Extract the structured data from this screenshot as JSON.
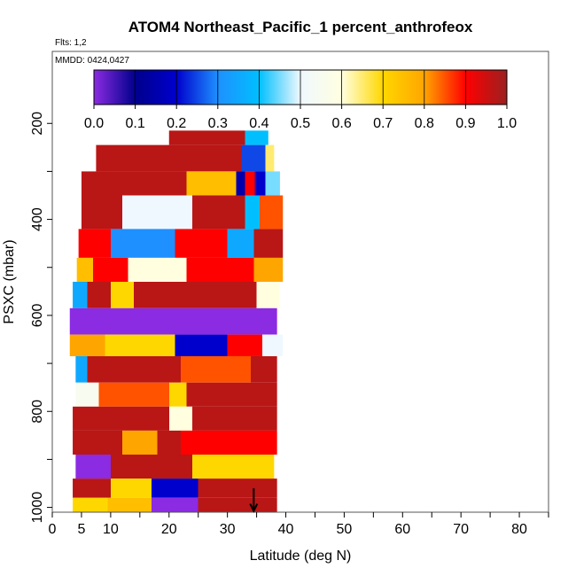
{
  "chart_data": {
    "type": "heatmap",
    "title": "ATOM4 Northeast_Pacific_1 percent_anthrofeox",
    "subtitle_flights": "Flts: 1,2",
    "subtitle_dates": "MMDD: 0424,0427",
    "xlabel": "Latitude (deg N)",
    "ylabel": "PSXC (mbar)",
    "xlim": [
      0,
      85
    ],
    "ylim": [
      1010,
      50
    ],
    "x_ticks": [
      0,
      5,
      10,
      20,
      30,
      40,
      50,
      60,
      70,
      80
    ],
    "x_minor_ticks": [
      15,
      25,
      35,
      45,
      55,
      65,
      75,
      85
    ],
    "y_ticks": [
      200,
      400,
      600,
      800,
      1000
    ],
    "y_minor_ticks": [
      300,
      500,
      700,
      900
    ],
    "colorbar": {
      "range": [
        0,
        1
      ],
      "tick_labels": [
        "0.0",
        "0.1",
        "0.2",
        "0.3",
        "0.4",
        "0.5",
        "0.6",
        "0.7",
        "0.8",
        "0.9",
        "1.0"
      ],
      "stops": [
        "#8b2be2",
        "#00008b",
        "#0000cd",
        "#1e90ff",
        "#00bfff",
        "#f0f8ff",
        "#ffffe0",
        "#ffd700",
        "#ffa500",
        "#ff0000",
        "#9b2020"
      ]
    },
    "grid": false,
    "marker": {
      "label": "arrow",
      "x": 34.5,
      "y": 1000
    },
    "bands": [
      {
        "p": [
          215,
          245
        ],
        "stops": [
          [
            20,
            20,
            0.97
          ],
          [
            27.2,
            27.2,
            0.97
          ],
          [
            27.2,
            30.5,
            0.97
          ],
          [
            31,
            33,
            0.97
          ],
          [
            33,
            37,
            0.4
          ]
        ]
      },
      {
        "p": [
          245,
          300
        ],
        "stops": [
          [
            7.5,
            32.5,
            0.97
          ],
          [
            32.5,
            36.5,
            0.25
          ],
          [
            36.5,
            38,
            0.65
          ]
        ]
      },
      {
        "p": [
          300,
          350
        ],
        "stops": [
          [
            5,
            23,
            0.97
          ],
          [
            23,
            31.5,
            0.75
          ],
          [
            31.5,
            33,
            0.15
          ],
          [
            33,
            34.5,
            0.9
          ],
          [
            35,
            36.5,
            0.2
          ],
          [
            36.5,
            39,
            0.45
          ]
        ]
      },
      {
        "p": [
          350,
          420
        ],
        "stops": [
          [
            5,
            12,
            0.97
          ],
          [
            12,
            24,
            0.5
          ],
          [
            24,
            33,
            0.97
          ],
          [
            33,
            35.5,
            0.4
          ],
          [
            35.5,
            39.5,
            0.85
          ]
        ]
      },
      {
        "p": [
          420,
          480
        ],
        "stops": [
          [
            4.5,
            10,
            0.9
          ],
          [
            10,
            21,
            0.3
          ],
          [
            21,
            30,
            0.9
          ],
          [
            30,
            34.5,
            0.35
          ],
          [
            34.5,
            39.5,
            0.97
          ]
        ]
      },
      {
        "p": [
          480,
          530
        ],
        "stops": [
          [
            4.2,
            7,
            0.75
          ],
          [
            7,
            13,
            0.9
          ],
          [
            13,
            23,
            0.6
          ],
          [
            23,
            34.5,
            0.9
          ],
          [
            34.5,
            39.5,
            0.8
          ]
        ]
      },
      {
        "p": [
          530,
          585
        ],
        "stops": [
          [
            3.5,
            6,
            0.35
          ],
          [
            6,
            10,
            0.97
          ],
          [
            10,
            14,
            0.7
          ],
          [
            14,
            35,
            0.97
          ],
          [
            35,
            39,
            0.6
          ]
        ]
      },
      {
        "p": [
          585,
          640
        ],
        "stops": [
          [
            3,
            38.5,
            0.0
          ]
        ]
      },
      {
        "p": [
          640,
          685
        ],
        "stops": [
          [
            3,
            9,
            0.8
          ],
          [
            9,
            21,
            0.7
          ],
          [
            21,
            30,
            0.2
          ],
          [
            30,
            36,
            0.9
          ],
          [
            36,
            39.5,
            0.5
          ]
        ]
      },
      {
        "p": [
          685,
          740
        ],
        "stops": [
          [
            4,
            6,
            0.35
          ],
          [
            6,
            22,
            0.97
          ],
          [
            22,
            34,
            0.85
          ],
          [
            34,
            38.5,
            0.97
          ]
        ]
      },
      {
        "p": [
          740,
          790
        ],
        "stops": [
          [
            4,
            8,
            0.55
          ],
          [
            8,
            20,
            0.85
          ],
          [
            20,
            23,
            0.7
          ],
          [
            23,
            38.5,
            0.97
          ]
        ]
      },
      {
        "p": [
          790,
          840
        ],
        "stops": [
          [
            3.5,
            20,
            0.97
          ],
          [
            20,
            24,
            0.6
          ],
          [
            24,
            38.5,
            0.97
          ]
        ]
      },
      {
        "p": [
          840,
          890
        ],
        "stops": [
          [
            3.5,
            12,
            0.97
          ],
          [
            12,
            18,
            0.8
          ],
          [
            18,
            22,
            0.97
          ],
          [
            22,
            38.5,
            0.9
          ]
        ]
      },
      {
        "p": [
          890,
          940
        ],
        "stops": [
          [
            4,
            10,
            0.0
          ],
          [
            10,
            17,
            0.97
          ],
          [
            17,
            24,
            0.97
          ],
          [
            24,
            38,
            0.7
          ]
        ]
      },
      {
        "p": [
          940,
          980
        ],
        "stops": [
          [
            3.5,
            10,
            0.97
          ],
          [
            10,
            17,
            0.7
          ],
          [
            17,
            25,
            0.2
          ],
          [
            25,
            38.5,
            0.97
          ]
        ]
      },
      {
        "p": [
          980,
          1010
        ],
        "stops": [
          [
            3.5,
            9.5,
            0.7
          ],
          [
            9.5,
            17,
            0.75
          ],
          [
            17,
            25,
            0.0
          ],
          [
            25,
            38.5,
            0.97
          ]
        ]
      }
    ]
  }
}
